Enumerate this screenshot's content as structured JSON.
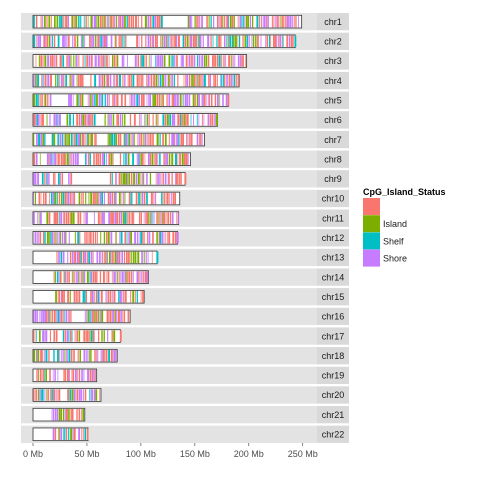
{
  "chart_data": {
    "type": "ideogram",
    "xlabel": "",
    "ylabel": "",
    "xlim": [
      0,
      260
    ],
    "x_ticks": [
      {
        "value": 0,
        "label": "0 Mb"
      },
      {
        "value": 50,
        "label": "50 Mb"
      },
      {
        "value": 100,
        "label": "100 Mb"
      },
      {
        "value": 150,
        "label": "150 Mb"
      },
      {
        "value": 200,
        "label": "200 Mb"
      },
      {
        "value": 250,
        "label": "250 Mb"
      }
    ],
    "chromosomes": [
      {
        "name": "chr1",
        "length": 249,
        "gaps": [
          [
            120,
            143
          ]
        ]
      },
      {
        "name": "chr2",
        "length": 243,
        "gaps": [
          [
            90,
            95
          ]
        ]
      },
      {
        "name": "chr3",
        "length": 198,
        "gaps": [
          [
            88,
            93
          ]
        ]
      },
      {
        "name": "chr4",
        "length": 191,
        "gaps": [
          [
            48,
            53
          ]
        ]
      },
      {
        "name": "chr5",
        "length": 181,
        "gaps": [
          [
            16,
            30
          ],
          [
            46,
            50
          ]
        ]
      },
      {
        "name": "chr6",
        "length": 171,
        "gaps": [
          [
            58,
            63
          ]
        ]
      },
      {
        "name": "chr7",
        "length": 159,
        "gaps": [
          [
            58,
            62
          ]
        ]
      },
      {
        "name": "chr8",
        "length": 146,
        "gaps": [
          [
            43,
            47
          ]
        ]
      },
      {
        "name": "chr9",
        "length": 141,
        "gaps": [
          [
            38,
            71
          ]
        ]
      },
      {
        "name": "chr10",
        "length": 136,
        "gaps": [
          [
            38,
            42
          ]
        ]
      },
      {
        "name": "chr11",
        "length": 135,
        "gaps": [
          [
            51,
            55
          ]
        ]
      },
      {
        "name": "chr12",
        "length": 134,
        "gaps": [
          [
            34,
            38
          ]
        ]
      },
      {
        "name": "chr13",
        "length": 115,
        "gaps": [
          [
            0,
            19
          ]
        ]
      },
      {
        "name": "chr14",
        "length": 107,
        "gaps": [
          [
            0,
            19
          ]
        ]
      },
      {
        "name": "chr15",
        "length": 103,
        "gaps": [
          [
            0,
            20
          ]
        ]
      },
      {
        "name": "chr16",
        "length": 90,
        "gaps": [
          [
            35,
            46
          ]
        ]
      },
      {
        "name": "chr17",
        "length": 81,
        "gaps": [
          [
            22,
            25
          ]
        ]
      },
      {
        "name": "chr18",
        "length": 78,
        "gaps": [
          [
            15,
            18
          ]
        ]
      },
      {
        "name": "chr19",
        "length": 59,
        "gaps": [
          [
            24,
            28
          ]
        ]
      },
      {
        "name": "chr20",
        "length": 63,
        "gaps": [
          [
            26,
            30
          ]
        ]
      },
      {
        "name": "chr21",
        "length": 48,
        "gaps": [
          [
            0,
            16
          ]
        ]
      },
      {
        "name": "chr22",
        "length": 51,
        "gaps": [
          [
            0,
            17
          ]
        ]
      }
    ],
    "legend": {
      "title": "CpG_Island_Status",
      "position": "right",
      "entries": [
        {
          "label": "",
          "color": "#F8766D"
        },
        {
          "label": "Island",
          "color": "#7CAE00"
        },
        {
          "label": "Shelf",
          "color": "#00BFC4"
        },
        {
          "label": "Shore",
          "color": "#C77CFF"
        }
      ]
    },
    "grid": false
  }
}
